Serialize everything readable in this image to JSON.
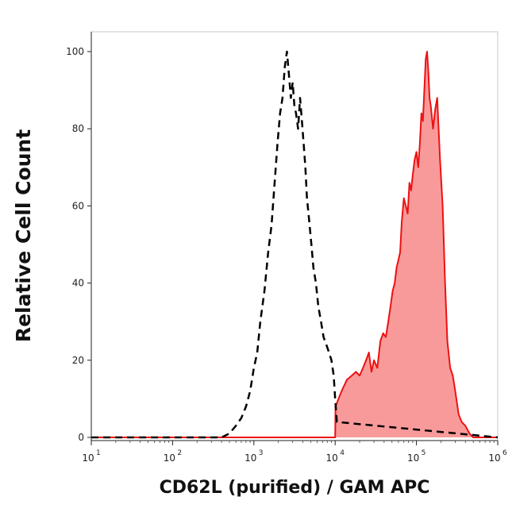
{
  "chart_data": {
    "type": "area",
    "title": "",
    "xlabel": "CD62L (purified) / GAM APC",
    "ylabel": "Relative Cell Count",
    "x_scale": "log",
    "xlim": [
      10,
      1000000
    ],
    "ylim": [
      0,
      105
    ],
    "grid": false,
    "x_ticks": [
      {
        "base": "10",
        "exp": "1",
        "value": 10
      },
      {
        "base": "10",
        "exp": "2",
        "value": 100
      },
      {
        "base": "10",
        "exp": "3",
        "value": 1000
      },
      {
        "base": "10",
        "exp": "4",
        "value": 10000
      },
      {
        "base": "10",
        "exp": "5",
        "value": 100000
      },
      {
        "base": "10",
        "exp": "6",
        "value": 1000000
      }
    ],
    "y_ticks": [
      {
        "label": "0",
        "value": 0
      },
      {
        "label": "20",
        "value": 20
      },
      {
        "label": "40",
        "value": 40
      },
      {
        "label": "60",
        "value": 60
      },
      {
        "label": "80",
        "value": 80
      },
      {
        "label": "100",
        "value": 100
      }
    ],
    "series": [
      {
        "style": "dashed",
        "color": "#000000",
        "x": [
          10,
          400,
          500,
          600,
          700,
          800,
          900,
          1000,
          1100,
          1200,
          1350,
          1500,
          1650,
          1800,
          1950,
          2100,
          2250,
          2400,
          2550,
          2700,
          2850,
          3000,
          3150,
          3300,
          3500,
          3700,
          3900,
          4100,
          4300,
          4500,
          4800,
          5100,
          5400,
          5800,
          6200,
          6700,
          7200,
          7800,
          8400,
          9000,
          9600,
          10000,
          10500,
          1000000
        ],
        "y": [
          0,
          0,
          1,
          3,
          5,
          8,
          12,
          18,
          22,
          30,
          38,
          48,
          55,
          66,
          76,
          84,
          88,
          96,
          100,
          94,
          88,
          92,
          86,
          84,
          80,
          88,
          82,
          76,
          70,
          62,
          56,
          50,
          44,
          40,
          34,
          30,
          26,
          24,
          22,
          20,
          16,
          10,
          4,
          0
        ]
      },
      {
        "style": "filled",
        "color": "#ee1111",
        "fill": "#f99a9a",
        "x": [
          10,
          10000,
          10100,
          12000,
          14000,
          16000,
          18000,
          20000,
          22000,
          24000,
          26000,
          28000,
          30000,
          33000,
          36000,
          39000,
          42000,
          45000,
          48000,
          51000,
          54000,
          57000,
          60000,
          63000,
          66000,
          70000,
          74000,
          78000,
          82000,
          86000,
          90000,
          95000,
          100000,
          105000,
          110000,
          115000,
          120000,
          125000,
          130000,
          135000,
          140000,
          145000,
          150000,
          160000,
          170000,
          180000,
          195000,
          210000,
          225000,
          240000,
          260000,
          280000,
          300000,
          330000,
          360000,
          400000,
          450000,
          500000,
          600000,
          1000000
        ],
        "y": [
          0,
          0,
          8,
          12,
          15,
          16,
          17,
          16,
          18,
          20,
          22,
          17,
          20,
          18,
          25,
          27,
          26,
          30,
          34,
          38,
          40,
          44,
          46,
          48,
          56,
          62,
          60,
          58,
          66,
          64,
          68,
          72,
          74,
          70,
          76,
          84,
          82,
          90,
          98,
          100,
          95,
          88,
          86,
          80,
          85,
          88,
          72,
          60,
          40,
          25,
          18,
          16,
          12,
          6,
          4,
          3,
          1,
          0,
          0,
          0
        ]
      }
    ]
  }
}
